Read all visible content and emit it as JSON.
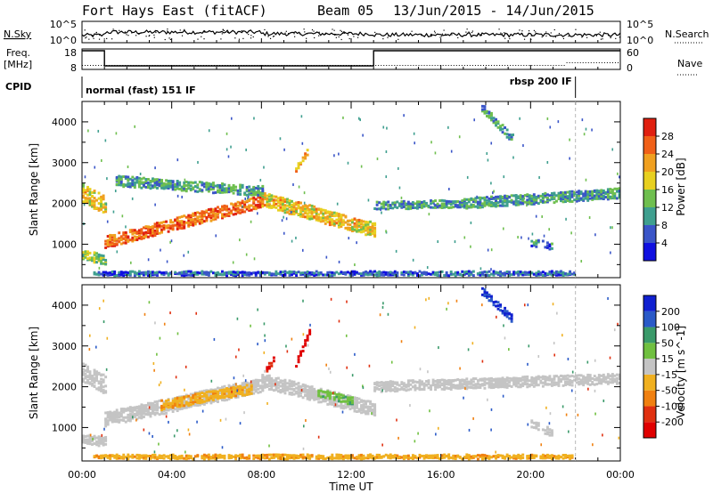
{
  "header": {
    "station": "Fort Hays East (fitACF)",
    "beam": "Beam 05",
    "dates": "13/Jun/2015 - 14/Jun/2015"
  },
  "summary": {
    "nsky_label": "N.Sky",
    "nsearch_label": "N.Search",
    "nsky_ticks": [
      "10^5",
      "10^0"
    ],
    "nsearch_ticks": [
      "10^5",
      "10^0"
    ],
    "freq_label_1": "Freq.",
    "freq_label_2": "[MHz]",
    "freq_ticks": [
      "18",
      "8"
    ],
    "nave_label": "Nave",
    "nave_ticks": [
      "60",
      "0"
    ],
    "cpid_label": "CPID",
    "cpid_segments": [
      {
        "label": "normal (fast) 151 IF",
        "start_hour": 0.0
      },
      {
        "label": "rbsp 200 IF",
        "start_hour": 22.0
      }
    ],
    "freq_steps": [
      {
        "start_hour": 0.0,
        "end_hour": 1.0,
        "level": "high"
      },
      {
        "start_hour": 1.0,
        "end_hour": 13.0,
        "level": "low"
      },
      {
        "start_hour": 13.0,
        "end_hour": 24.0,
        "level": "high"
      }
    ]
  },
  "axes": {
    "ylabel": "Slant Range [km]",
    "xlabel": "Time UT",
    "yticks": [
      1000,
      2000,
      3000,
      4000
    ],
    "xticks": [
      "00:00",
      "04:00",
      "08:00",
      "12:00",
      "16:00",
      "20:00",
      "00:00"
    ],
    "xlim_hours": [
      0,
      24
    ],
    "ylim_km": [
      180,
      4500
    ]
  },
  "colors": {
    "power_scale": [
      "#1010e0",
      "#3a55c8",
      "#3f9f8f",
      "#6fbf4f",
      "#e8d020",
      "#f0a020",
      "#f06018",
      "#e02010"
    ],
    "velocity_scale": [
      "#1020d0",
      "#2a5ac8",
      "#3a9a6a",
      "#70c040",
      "#c8c8c8",
      "#f0b020",
      "#f08010",
      "#e03010",
      "#e00000"
    ],
    "ground_scatter": "#c4c4c4"
  },
  "chart_data": [
    {
      "type": "heatmap",
      "title": "Power",
      "xlabel": "Time UT",
      "ylabel": "Slant Range [km]",
      "colorbar_label": "Power [dB]",
      "colorbar_ticks": [
        "28",
        "24",
        "20",
        "16",
        "12",
        "8",
        "4"
      ],
      "colorbar_range": [
        0,
        30
      ],
      "xlim": [
        0,
        24
      ],
      "ylim": [
        180,
        4500
      ],
      "bands": [
        {
          "start_hour": 0.0,
          "end_hour": 1.0,
          "center_start_km": 2300,
          "center_end_km": 2000,
          "width_km": 450,
          "power_db": 18
        },
        {
          "start_hour": 0.0,
          "end_hour": 1.0,
          "center_start_km": 800,
          "center_end_km": 650,
          "width_km": 250,
          "power_db": 14
        },
        {
          "start_hour": 1.0,
          "end_hour": 8.0,
          "center_start_km": 1100,
          "center_end_km": 2100,
          "width_km": 300,
          "power_db": 24
        },
        {
          "start_hour": 8.0,
          "end_hour": 13.0,
          "center_start_km": 2150,
          "center_end_km": 1400,
          "width_km": 350,
          "power_db": 18
        },
        {
          "start_hour": 1.5,
          "end_hour": 8.0,
          "center_start_km": 2600,
          "center_end_km": 2350,
          "width_km": 250,
          "power_db": 10
        },
        {
          "start_hour": 9.5,
          "end_hour": 10.0,
          "center_start_km": 2900,
          "center_end_km": 3300,
          "width_km": 150,
          "power_db": 20
        },
        {
          "start_hour": 13.0,
          "end_hour": 17.0,
          "center_start_km": 2000,
          "center_end_km": 2050,
          "width_km": 200,
          "power_db": 10
        },
        {
          "start_hour": 17.0,
          "end_hour": 24.0,
          "center_start_km": 2050,
          "center_end_km": 2300,
          "width_km": 250,
          "power_db": 10
        },
        {
          "start_hour": 17.8,
          "end_hour": 19.2,
          "center_start_km": 4400,
          "center_end_km": 3600,
          "width_km": 200,
          "power_db": 10
        },
        {
          "start_hour": 20.0,
          "end_hour": 21.0,
          "center_start_km": 1100,
          "center_end_km": 1000,
          "width_km": 200,
          "power_db": 8
        },
        {
          "start_hour": 0.5,
          "end_hour": 22.0,
          "center_start_km": 330,
          "center_end_km": 330,
          "width_km": 100,
          "power_db": 6
        }
      ]
    },
    {
      "type": "heatmap",
      "title": "Velocity",
      "xlabel": "Time UT",
      "ylabel": "Slant Range [km]",
      "colorbar_label": "Velocity [m s^-1]",
      "colorbar_ticks": [
        "200",
        "100",
        "50",
        "15",
        "-15",
        "-50",
        "-100",
        "-200"
      ],
      "colorbar_range": [
        -250,
        250
      ],
      "xlim": [
        0,
        24
      ],
      "ylim": [
        180,
        4500
      ],
      "bands": [
        {
          "start_hour": 0.0,
          "end_hour": 1.0,
          "center_start_km": 2400,
          "center_end_km": 2100,
          "width_km": 450,
          "velocity": 0
        },
        {
          "start_hour": 0.0,
          "end_hour": 1.0,
          "center_start_km": 800,
          "center_end_km": 700,
          "width_km": 250,
          "velocity": 0
        },
        {
          "start_hour": 1.0,
          "end_hour": 8.0,
          "center_start_km": 1250,
          "center_end_km": 2100,
          "width_km": 350,
          "velocity": 0
        },
        {
          "start_hour": 3.5,
          "end_hour": 7.5,
          "center_start_km": 1600,
          "center_end_km": 2000,
          "width_km": 250,
          "velocity": -40
        },
        {
          "start_hour": 8.0,
          "end_hour": 13.0,
          "center_start_km": 2200,
          "center_end_km": 1500,
          "width_km": 350,
          "velocity": 0
        },
        {
          "start_hour": 10.5,
          "end_hour": 12.0,
          "center_start_km": 1900,
          "center_end_km": 1700,
          "width_km": 200,
          "velocity": 40
        },
        {
          "start_hour": 9.5,
          "end_hour": 10.1,
          "center_start_km": 2600,
          "center_end_km": 3400,
          "width_km": 150,
          "velocity": -220
        },
        {
          "start_hour": 8.2,
          "end_hour": 8.5,
          "center_start_km": 2500,
          "center_end_km": 2700,
          "width_km": 150,
          "velocity": -200
        },
        {
          "start_hour": 13.0,
          "end_hour": 24.0,
          "center_start_km": 2050,
          "center_end_km": 2250,
          "width_km": 250,
          "velocity": 0
        },
        {
          "start_hour": 17.8,
          "end_hour": 19.2,
          "center_start_km": 4400,
          "center_end_km": 3700,
          "width_km": 200,
          "velocity": 200
        },
        {
          "start_hour": 20.0,
          "end_hour": 21.0,
          "center_start_km": 1150,
          "center_end_km": 900,
          "width_km": 200,
          "velocity": 0
        },
        {
          "start_hour": 0.5,
          "end_hour": 22.0,
          "center_start_km": 330,
          "center_end_km": 330,
          "width_km": 100,
          "velocity": -40
        }
      ]
    }
  ]
}
